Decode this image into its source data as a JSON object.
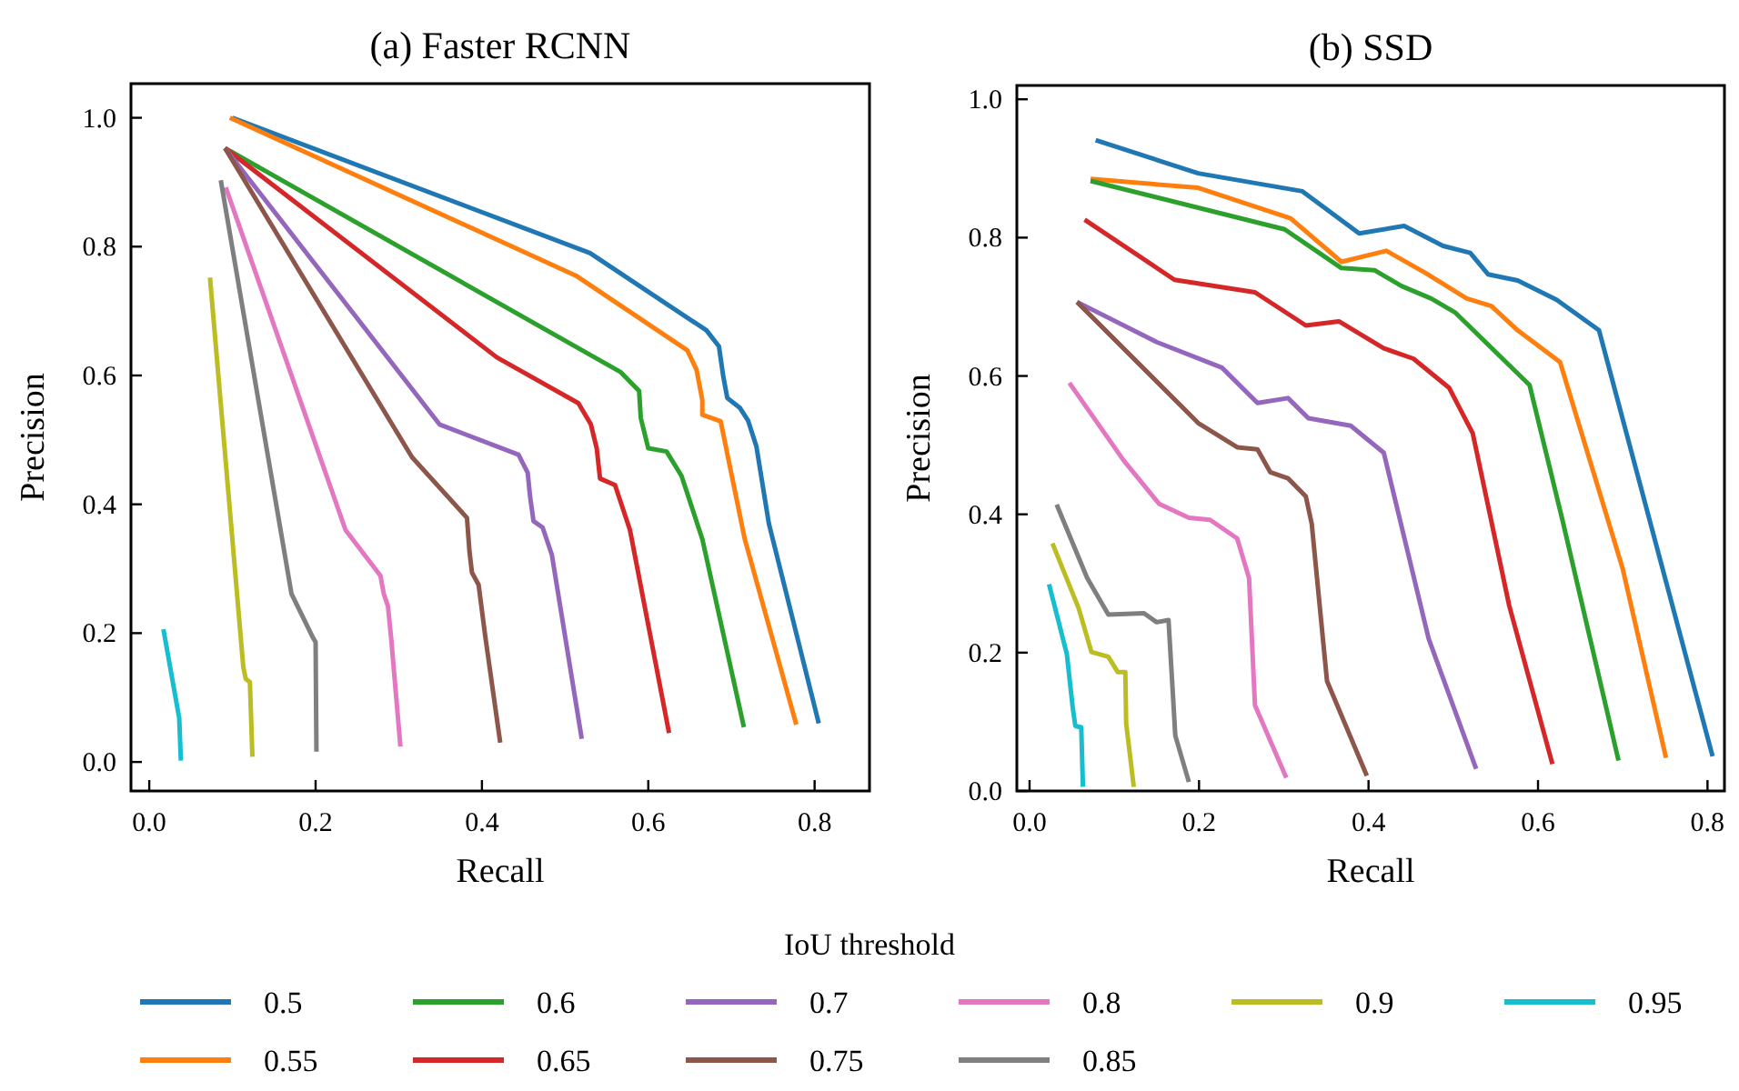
{
  "chart_data": [
    {
      "type": "line",
      "title": "(a) Faster RCNN",
      "xlabel": "Recall",
      "ylabel": "Precision",
      "legend": "bottom",
      "legend_title": "IoU threshold",
      "xlim": [
        -0.022,
        0.866
      ],
      "ylim": [
        -0.045,
        1.053
      ],
      "xticks": [
        {
          "value": 0,
          "label": "0.0"
        },
        {
          "value": 0.2,
          "label": "0.2"
        },
        {
          "value": 0.4,
          "label": "0.4"
        },
        {
          "value": 0.6,
          "label": "0.6"
        },
        {
          "value": 0.8,
          "label": "0.8"
        }
      ],
      "yticks": [
        {
          "value": 0,
          "label": "0.0"
        },
        {
          "value": 0.2,
          "label": "0.2"
        },
        {
          "value": 0.4,
          "label": "0.4"
        },
        {
          "value": 0.6,
          "label": "0.6"
        },
        {
          "value": 0.8,
          "label": "0.8"
        },
        {
          "value": 1,
          "label": "1.0"
        }
      ],
      "series": [
        {
          "name": "0.5",
          "color": "#1f77b4",
          "x": [
            0.1,
            0.53,
            0.67,
            0.685,
            0.69,
            0.695,
            0.71,
            0.72,
            0.73,
            0.745,
            0.805
          ],
          "values": [
            1.0,
            0.79,
            0.67,
            0.645,
            0.6,
            0.565,
            0.55,
            0.53,
            0.49,
            0.37,
            0.06
          ]
        },
        {
          "name": "0.55",
          "color": "#ff7f0e",
          "x": [
            0.097,
            0.513,
            0.647,
            0.658,
            0.665,
            0.665,
            0.687,
            0.716,
            0.778
          ],
          "values": [
            1.0,
            0.755,
            0.639,
            0.609,
            0.562,
            0.539,
            0.529,
            0.346,
            0.058
          ]
        },
        {
          "name": "0.6",
          "color": "#2ca02c",
          "x": [
            0.091,
            0.567,
            0.589,
            0.591,
            0.6,
            0.622,
            0.64,
            0.665,
            0.715
          ],
          "values": [
            0.953,
            0.605,
            0.576,
            0.534,
            0.487,
            0.482,
            0.444,
            0.346,
            0.054
          ]
        },
        {
          "name": "0.65",
          "color": "#d62728",
          "x": [
            0.091,
            0.418,
            0.516,
            0.531,
            0.538,
            0.542,
            0.56,
            0.578,
            0.625
          ],
          "values": [
            0.953,
            0.628,
            0.557,
            0.524,
            0.487,
            0.44,
            0.43,
            0.36,
            0.045
          ]
        },
        {
          "name": "0.7",
          "color": "#9467bd",
          "x": [
            0.091,
            0.349,
            0.444,
            0.455,
            0.458,
            0.462,
            0.473,
            0.484,
            0.52
          ],
          "values": [
            0.953,
            0.524,
            0.477,
            0.449,
            0.411,
            0.374,
            0.364,
            0.322,
            0.036
          ]
        },
        {
          "name": "0.75",
          "color": "#8c564b",
          "x": [
            0.091,
            0.316,
            0.382,
            0.385,
            0.388,
            0.396,
            0.404,
            0.422
          ],
          "values": [
            0.953,
            0.473,
            0.379,
            0.327,
            0.294,
            0.275,
            0.195,
            0.03
          ]
        },
        {
          "name": "0.8",
          "color": "#e377c2",
          "x": [
            0.092,
            0.236,
            0.278,
            0.282,
            0.287,
            0.291,
            0.302
          ],
          "values": [
            0.892,
            0.36,
            0.289,
            0.261,
            0.242,
            0.19,
            0.024
          ]
        },
        {
          "name": "0.85",
          "color": "#7f7f7f",
          "x": [
            0.086,
            0.171,
            0.196,
            0.2,
            0.201
          ],
          "values": [
            0.903,
            0.261,
            0.195,
            0.186,
            0.016
          ]
        },
        {
          "name": "0.9",
          "color": "#bcbd22",
          "x": [
            0.073,
            0.113,
            0.116,
            0.121,
            0.124
          ],
          "values": [
            0.752,
            0.148,
            0.129,
            0.124,
            0.008
          ]
        },
        {
          "name": "0.95",
          "color": "#17becf",
          "x": [
            0.017,
            0.036,
            0.038
          ],
          "values": [
            0.206,
            0.068,
            0.002
          ]
        }
      ]
    },
    {
      "type": "line",
      "title": "(b) SSD",
      "xlabel": "Recall",
      "ylabel": "Precision",
      "xlim": [
        -0.015,
        0.82
      ],
      "ylim": [
        0,
        1.02
      ],
      "xticks": [
        {
          "value": 0,
          "label": "0.0"
        },
        {
          "value": 0.2,
          "label": "0.2"
        },
        {
          "value": 0.4,
          "label": "0.4"
        },
        {
          "value": 0.6,
          "label": "0.6"
        },
        {
          "value": 0.8,
          "label": "0.8"
        }
      ],
      "yticks": [
        {
          "value": 0,
          "label": "0.0"
        },
        {
          "value": 0.2,
          "label": "0.2"
        },
        {
          "value": 0.4,
          "label": "0.4"
        },
        {
          "value": 0.6,
          "label": "0.6"
        },
        {
          "value": 0.8,
          "label": "0.8"
        },
        {
          "value": 1,
          "label": "1.0"
        }
      ],
      "series": [
        {
          "name": "0.5",
          "color": "#1f77b4",
          "x": [
            0.078,
            0.199,
            0.322,
            0.389,
            0.442,
            0.488,
            0.52,
            0.541,
            0.576,
            0.622,
            0.672,
            0.806
          ],
          "values": [
            0.941,
            0.893,
            0.867,
            0.806,
            0.817,
            0.788,
            0.778,
            0.747,
            0.738,
            0.71,
            0.666,
            0.05
          ]
        },
        {
          "name": "0.55",
          "color": "#ff7f0e",
          "x": [
            0.072,
            0.199,
            0.308,
            0.368,
            0.421,
            0.467,
            0.516,
            0.545,
            0.576,
            0.626,
            0.7,
            0.751
          ],
          "values": [
            0.885,
            0.872,
            0.828,
            0.765,
            0.781,
            0.749,
            0.712,
            0.701,
            0.666,
            0.62,
            0.321,
            0.048
          ]
        },
        {
          "name": "0.6",
          "color": "#2ca02c",
          "x": [
            0.072,
            0.301,
            0.368,
            0.407,
            0.439,
            0.474,
            0.502,
            0.59,
            0.629,
            0.695
          ],
          "values": [
            0.882,
            0.812,
            0.756,
            0.753,
            0.73,
            0.712,
            0.692,
            0.587,
            0.391,
            0.044
          ]
        },
        {
          "name": "0.65",
          "color": "#d62728",
          "x": [
            0.065,
            0.171,
            0.266,
            0.326,
            0.365,
            0.418,
            0.453,
            0.495,
            0.523,
            0.566,
            0.617
          ],
          "values": [
            0.826,
            0.739,
            0.721,
            0.673,
            0.679,
            0.64,
            0.625,
            0.583,
            0.517,
            0.268,
            0.039
          ]
        },
        {
          "name": "0.7",
          "color": "#9467bd",
          "x": [
            0.056,
            0.15,
            0.227,
            0.269,
            0.305,
            0.329,
            0.379,
            0.418,
            0.471,
            0.527
          ],
          "values": [
            0.707,
            0.649,
            0.612,
            0.561,
            0.568,
            0.539,
            0.528,
            0.489,
            0.22,
            0.032
          ]
        },
        {
          "name": "0.75",
          "color": "#8c564b",
          "x": [
            0.056,
            0.199,
            0.245,
            0.269,
            0.284,
            0.305,
            0.326,
            0.333,
            0.351,
            0.398
          ],
          "values": [
            0.707,
            0.532,
            0.497,
            0.494,
            0.461,
            0.452,
            0.426,
            0.386,
            0.159,
            0.022
          ]
        },
        {
          "name": "0.8",
          "color": "#e377c2",
          "x": [
            0.047,
            0.111,
            0.153,
            0.188,
            0.213,
            0.245,
            0.259,
            0.266,
            0.303
          ],
          "values": [
            0.59,
            0.478,
            0.415,
            0.395,
            0.392,
            0.365,
            0.308,
            0.124,
            0.019
          ]
        },
        {
          "name": "0.85",
          "color": "#7f7f7f",
          "x": [
            0.032,
            0.068,
            0.093,
            0.135,
            0.15,
            0.164,
            0.172,
            0.188
          ],
          "values": [
            0.414,
            0.308,
            0.255,
            0.257,
            0.244,
            0.247,
            0.08,
            0.013
          ]
        },
        {
          "name": "0.9",
          "color": "#bcbd22",
          "x": [
            0.027,
            0.058,
            0.073,
            0.093,
            0.104,
            0.113,
            0.114,
            0.123
          ],
          "values": [
            0.358,
            0.264,
            0.201,
            0.194,
            0.172,
            0.172,
            0.098,
            0.006
          ]
        },
        {
          "name": "0.95",
          "color": "#17becf",
          "x": [
            0.023,
            0.044,
            0.051,
            0.054,
            0.061,
            0.063
          ],
          "values": [
            0.299,
            0.198,
            0.12,
            0.094,
            0.092,
            0.006
          ]
        }
      ]
    }
  ]
}
